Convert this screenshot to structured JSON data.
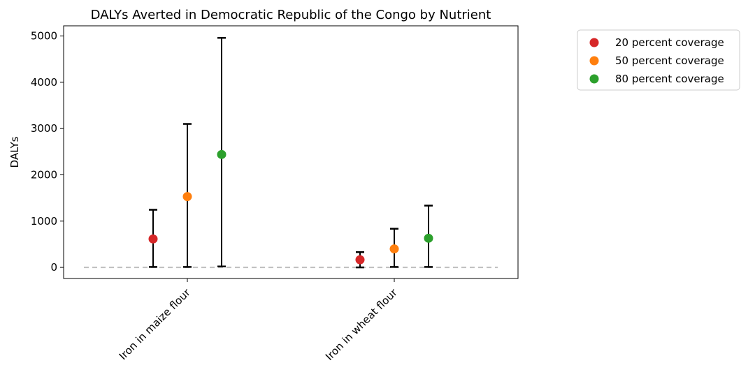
{
  "chart_data": {
    "type": "scatter",
    "title": "DALYs Averted in Democratic Republic of the Congo by Nutrient",
    "xlabel": "",
    "ylabel": "DALYs",
    "categories": [
      "Iron in maize flour",
      "Iron in wheat flour"
    ],
    "ylim": [
      -240,
      5220
    ],
    "yticks": [
      0,
      1000,
      2000,
      3000,
      4000,
      5000
    ],
    "grid": false,
    "legend_position": "outside-top-right",
    "reference_line": {
      "y": 0,
      "style": "dashed",
      "color": "#bfbfbf"
    },
    "series": [
      {
        "name": "20 percent coverage",
        "color": "#d62728",
        "values": [
          615,
          165
        ],
        "error_low": [
          10,
          0
        ],
        "error_high": [
          1245,
          330
        ]
      },
      {
        "name": "50 percent coverage",
        "color": "#ff7f0e",
        "values": [
          1530,
          400
        ],
        "error_low": [
          10,
          10
        ],
        "error_high": [
          3100,
          835
        ]
      },
      {
        "name": "80 percent coverage",
        "color": "#2ca02c",
        "values": [
          2440,
          630
        ],
        "error_low": [
          20,
          10
        ],
        "error_high": [
          4960,
          1335
        ]
      }
    ]
  }
}
